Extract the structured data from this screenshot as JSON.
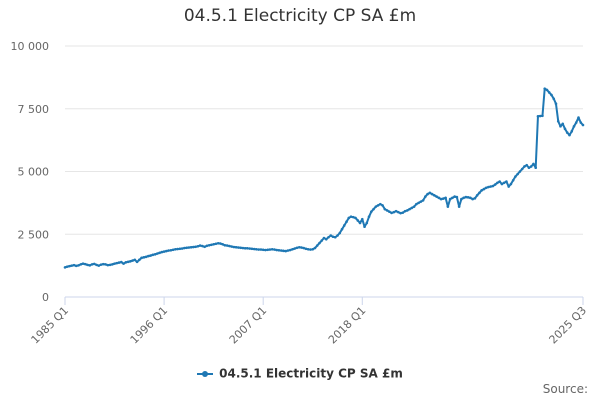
{
  "chart_data": {
    "type": "line",
    "title": "04.5.1 Electricity CP SA £m",
    "xlabel": "",
    "ylabel": "",
    "ylim": [
      0,
      10000
    ],
    "y_ticks": [
      0,
      2500,
      5000,
      7500,
      10000
    ],
    "y_tick_labels": [
      "0",
      "2 500",
      "5 000",
      "7 500",
      "10 000"
    ],
    "x_tick_labels": [
      "1985 Q1",
      "1996 Q1",
      "2007 Q1",
      "2018 Q1",
      "2025 Q3"
    ],
    "grid": true,
    "legend_position": "bottom",
    "colors": {
      "series": "#1f78b4",
      "grid": "#e6e6e6",
      "axis": "#ccd6eb"
    },
    "series": [
      {
        "name": "04.5.1 Electricity CP SA £m",
        "values": [
          1180,
          1210,
          1230,
          1250,
          1270,
          1240,
          1260,
          1300,
          1330,
          1310,
          1280,
          1260,
          1300,
          1320,
          1280,
          1250,
          1290,
          1310,
          1300,
          1270,
          1280,
          1300,
          1330,
          1350,
          1370,
          1390,
          1330,
          1380,
          1400,
          1420,
          1450,
          1480,
          1400,
          1480,
          1560,
          1580,
          1600,
          1630,
          1650,
          1680,
          1700,
          1730,
          1760,
          1790,
          1810,
          1830,
          1850,
          1860,
          1880,
          1900,
          1910,
          1920,
          1930,
          1950,
          1960,
          1970,
          1980,
          1990,
          2000,
          2020,
          2050,
          2030,
          2000,
          2040,
          2060,
          2080,
          2100,
          2120,
          2140,
          2130,
          2100,
          2060,
          2050,
          2030,
          2010,
          1990,
          1980,
          1970,
          1960,
          1950,
          1940,
          1940,
          1930,
          1920,
          1910,
          1900,
          1890,
          1890,
          1880,
          1870,
          1880,
          1890,
          1900,
          1890,
          1870,
          1860,
          1850,
          1840,
          1830,
          1850,
          1870,
          1900,
          1930,
          1960,
          1980,
          1970,
          1950,
          1920,
          1900,
          1890,
          1900,
          1950,
          2050,
          2150,
          2250,
          2350,
          2300,
          2380,
          2450,
          2400,
          2380,
          2450,
          2550,
          2700,
          2850,
          3000,
          3150,
          3200,
          3180,
          3150,
          3050,
          2950,
          3100,
          2800,
          2950,
          3200,
          3400,
          3500,
          3600,
          3650,
          3700,
          3650,
          3500,
          3450,
          3400,
          3350,
          3380,
          3420,
          3380,
          3340,
          3360,
          3420,
          3450,
          3500,
          3550,
          3600,
          3700,
          3750,
          3800,
          3850,
          4000,
          4100,
          4150,
          4100,
          4050,
          4000,
          3950,
          3900,
          3920,
          3950,
          3600,
          3900,
          3950,
          4000,
          3980,
          3600,
          3900,
          3950,
          3980,
          3970,
          3950,
          3900,
          3930,
          4050,
          4150,
          4250,
          4300,
          4350,
          4380,
          4400,
          4420,
          4480,
          4550,
          4600,
          4500,
          4550,
          4600,
          4400,
          4500,
          4650,
          4800,
          4900,
          5000,
          5100,
          5200,
          5250,
          5150,
          5200,
          5300,
          5150,
          7200,
          7210,
          7220,
          8300,
          8250,
          8150,
          8050,
          7900,
          7700,
          7000,
          6800,
          6900,
          6700,
          6550,
          6450,
          6600,
          6800,
          6950,
          7150,
          6950,
          6850
        ]
      }
    ]
  },
  "legend": {
    "label": "04.5.1 Electricity CP SA £m"
  },
  "source": {
    "label": "Source:"
  }
}
